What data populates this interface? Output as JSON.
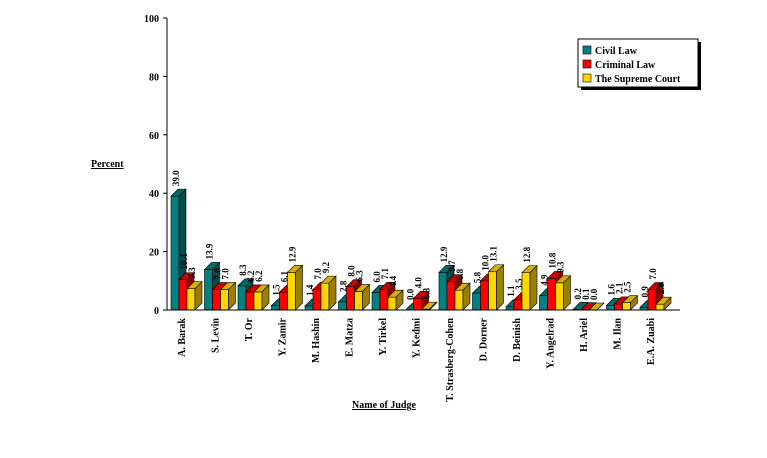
{
  "chart_data": {
    "type": "bar",
    "title": "",
    "xlabel": "Name of Judge",
    "ylabel": "Percent",
    "ylim": [
      0,
      100
    ],
    "yticks": [
      0,
      20,
      40,
      60,
      80,
      100
    ],
    "grid": false,
    "legend_position": "top-right",
    "categories": [
      "A. Barak",
      "S. Levin",
      "T. Or",
      "Y. Zamir",
      "M. Hashin",
      "E. Matza",
      "Y. Tirkel",
      "Y. Kedmi",
      "T. Strasberg-Cohen",
      "D. Dorner",
      "D. Beinish",
      "Y. Angelrad",
      "H. Ariel",
      "M. Ilan",
      "E.A. Zuabi"
    ],
    "series": [
      {
        "name": "Civil Law",
        "color": "#008080",
        "values": [
          39.0,
          13.9,
          8.3,
          1.5,
          1.4,
          2.8,
          6.0,
          0.0,
          12.9,
          5.8,
          1.1,
          4.9,
          0.2,
          1.6,
          0.9
        ]
      },
      {
        "name": "Criminal Law",
        "color": "#ff0000",
        "values": [
          10.4,
          7.0,
          6.2,
          6.1,
          7.0,
          8.0,
          7.1,
          4.0,
          9.7,
          10.0,
          3.5,
          10.8,
          0.1,
          2.1,
          7.0
        ]
      },
      {
        "name": "The Supreme Court",
        "color": "#ffd700",
        "values": [
          7.3,
          7.0,
          6.2,
          12.9,
          9.2,
          6.3,
          4.4,
          0.3,
          6.8,
          13.1,
          12.8,
          9.3,
          0.0,
          2.5,
          2.0
        ]
      }
    ],
    "data_labels": [
      [
        "39.0",
        "10.4",
        "7.3"
      ],
      [
        "13.9",
        "7.0",
        "7.0"
      ],
      [
        "8.3",
        "6.2",
        "6.2"
      ],
      [
        "1.5",
        "6.1",
        "12.9"
      ],
      [
        "1.4",
        "7.0",
        "9.2"
      ],
      [
        "2.8",
        "8.0",
        "6.3"
      ],
      [
        "6.0",
        "7.1",
        "4.4"
      ],
      [
        "0.0",
        "4.0",
        "0.3"
      ],
      [
        "12.9",
        "9.7",
        "6.8"
      ],
      [
        "5.8",
        "10.0",
        "13.1"
      ],
      [
        "1.1",
        "3.5",
        "12.8"
      ],
      [
        "4.9",
        "10.8",
        "9.3"
      ],
      [
        "0.2",
        "0.1",
        "0.0"
      ],
      [
        "1.6",
        "2.1",
        "2.5"
      ],
      [
        "0.9",
        "7.0",
        "2.0"
      ]
    ]
  }
}
